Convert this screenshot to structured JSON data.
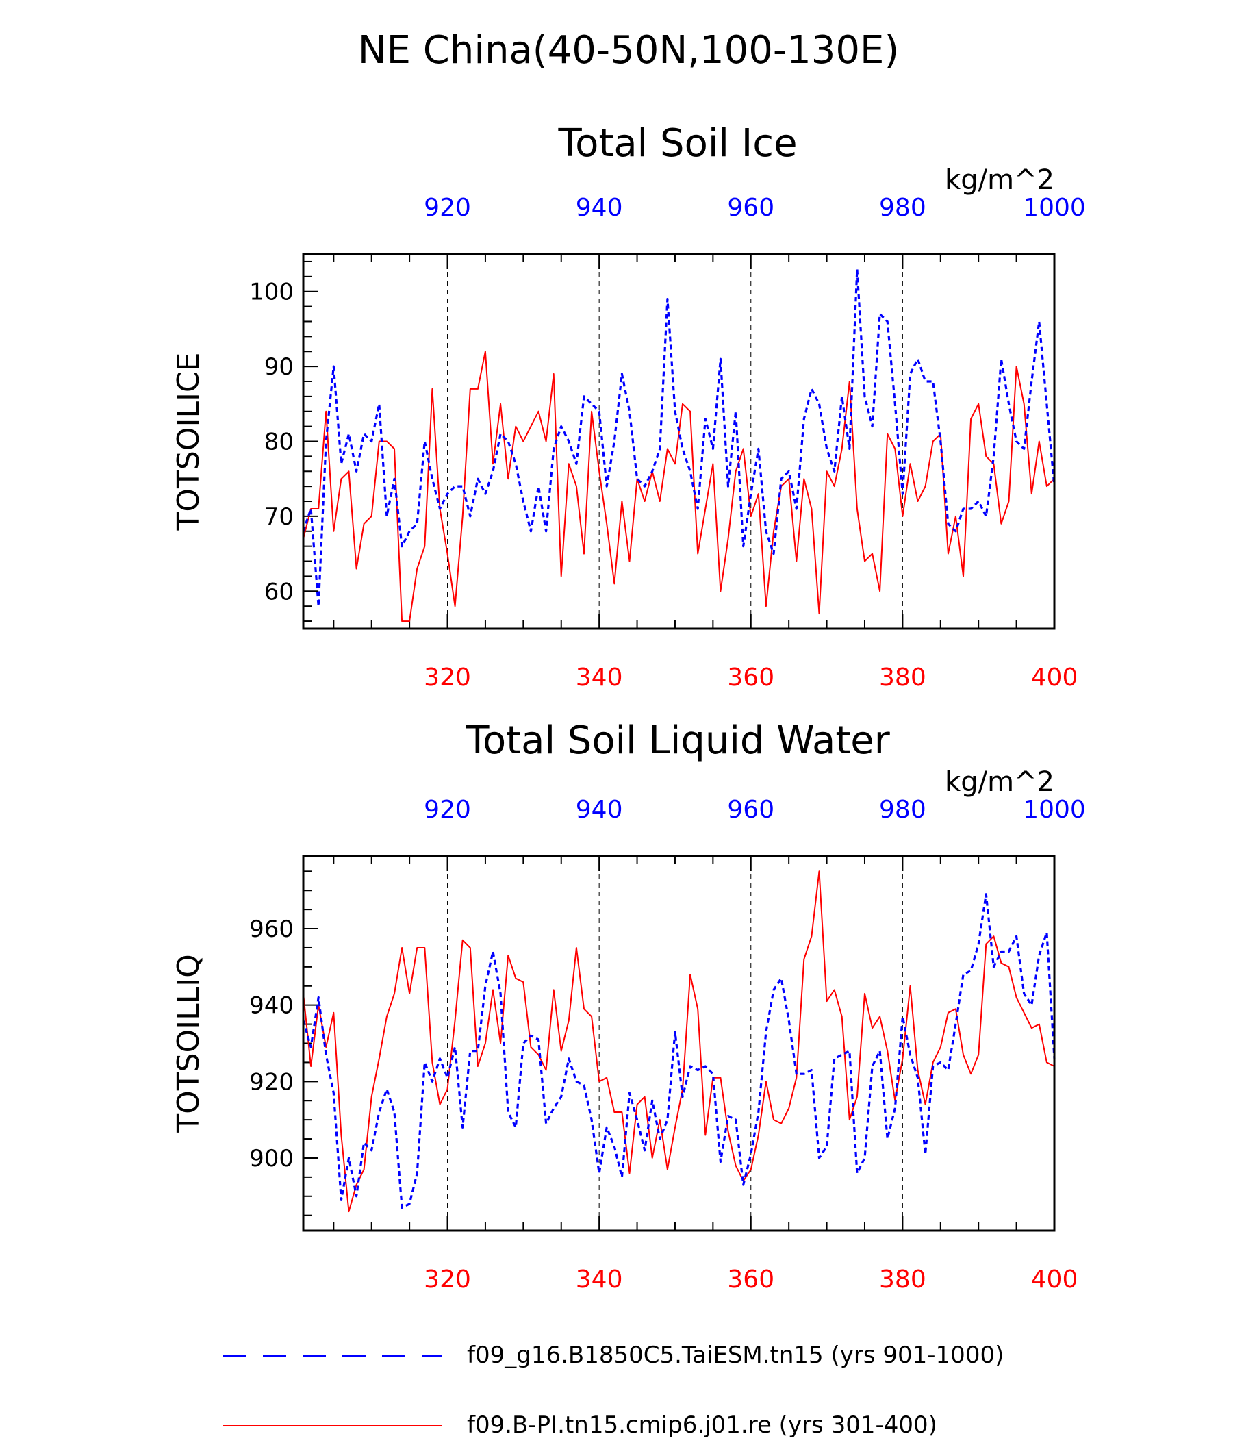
{
  "figure": {
    "title": "NE China(40-50N,100-130E)",
    "legend": [
      {
        "label": "f09_g16.B1850C5.TaiESM.tn15 (yrs 901-1000)",
        "color": "#0000ff",
        "style": "dashed"
      },
      {
        "label": "f09.B-PI.tn15.cmip6.j01.re (yrs 301-400)",
        "color": "#ff0000",
        "style": "solid"
      }
    ]
  },
  "chart_data": [
    {
      "type": "line",
      "title": "Total Soil Ice",
      "ylabel": "TOTSOILICE",
      "units": "kg/m^2",
      "ylim": [
        55,
        105
      ],
      "yticks": [
        60,
        70,
        80,
        90,
        100
      ],
      "grid": "vertical dashed at major x ticks",
      "bottom_axis": {
        "range": [
          301,
          400
        ],
        "ticks": [
          320,
          340,
          360,
          380,
          400
        ],
        "color": "#ff0000"
      },
      "top_axis": {
        "range": [
          901,
          1000
        ],
        "ticks": [
          920,
          940,
          960,
          980,
          1000
        ],
        "color": "#0000ff"
      },
      "series": [
        {
          "axis": "bottom",
          "color": "#ff0000",
          "style": "solid",
          "x_start": 301,
          "values": [
            67,
            71,
            71,
            84,
            68,
            75,
            76,
            63,
            69,
            70,
            80,
            80,
            79,
            56,
            56,
            63,
            66,
            87,
            71,
            65,
            58,
            70,
            87,
            87,
            92,
            77,
            85,
            75,
            82,
            80,
            82,
            84,
            80,
            89,
            62,
            77,
            74,
            65,
            84,
            76,
            69,
            61,
            72,
            64,
            75,
            72,
            76,
            72,
            79,
            77,
            85,
            84,
            65,
            71,
            77,
            60,
            67,
            76,
            79,
            70,
            73,
            58,
            68,
            74,
            75,
            64,
            75,
            71,
            57,
            76,
            74,
            79,
            88,
            71,
            64,
            65,
            60,
            81,
            79,
            70,
            77,
            72,
            74,
            80,
            81,
            65,
            70,
            62,
            83,
            85,
            78,
            77,
            69,
            72,
            90,
            85,
            73,
            80,
            74,
            75
          ]
        },
        {
          "axis": "top",
          "color": "#0000ff",
          "style": "dashed",
          "x_start": 901,
          "values": [
            68,
            71,
            58,
            80,
            90,
            77,
            81,
            76,
            81,
            80,
            85,
            70,
            75,
            66,
            68,
            69,
            80,
            75,
            71,
            73,
            74,
            74,
            70,
            75,
            73,
            76,
            81,
            80,
            77,
            72,
            68,
            74,
            68,
            79,
            82,
            80,
            77,
            86,
            85,
            84,
            74,
            80,
            89,
            84,
            75,
            74,
            76,
            79,
            99,
            84,
            79,
            76,
            71,
            83,
            79,
            91,
            74,
            84,
            66,
            73,
            79,
            68,
            65,
            75,
            76,
            71,
            83,
            87,
            85,
            79,
            76,
            86,
            79,
            103,
            86,
            82,
            97,
            96,
            85,
            73,
            89,
            91,
            88,
            88,
            80,
            69,
            68,
            71,
            71,
            72,
            70,
            78,
            91,
            85,
            80,
            79,
            88,
            96,
            85,
            74
          ]
        }
      ]
    },
    {
      "type": "line",
      "title": "Total Soil Liquid Water",
      "ylabel": "TOTSOILLIQ",
      "units": "kg/m^2",
      "ylim": [
        881,
        979
      ],
      "yticks": [
        900,
        920,
        940,
        960
      ],
      "grid": "vertical dashed at major x ticks",
      "bottom_axis": {
        "range": [
          301,
          400
        ],
        "ticks": [
          320,
          340,
          360,
          380,
          400
        ],
        "color": "#ff0000"
      },
      "top_axis": {
        "range": [
          901,
          1000
        ],
        "ticks": [
          920,
          940,
          960,
          980,
          1000
        ],
        "color": "#0000ff"
      },
      "series": [
        {
          "axis": "bottom",
          "color": "#ff0000",
          "style": "solid",
          "x_start": 301,
          "values": [
            943,
            924,
            940,
            929,
            938,
            906,
            886,
            893,
            897,
            916,
            926,
            937,
            943,
            955,
            943,
            955,
            955,
            925,
            914,
            918,
            936,
            957,
            955,
            924,
            930,
            944,
            930,
            953,
            947,
            946,
            929,
            927,
            923,
            944,
            928,
            936,
            955,
            939,
            937,
            920,
            921,
            912,
            912,
            896,
            914,
            916,
            900,
            910,
            897,
            908,
            918,
            948,
            939,
            906,
            921,
            921,
            907,
            898,
            894,
            897,
            906,
            920,
            910,
            909,
            913,
            921,
            952,
            958,
            975,
            941,
            944,
            937,
            910,
            916,
            943,
            934,
            937,
            928,
            915,
            926,
            945,
            923,
            914,
            925,
            929,
            938,
            939,
            927,
            922,
            927,
            956,
            958,
            951,
            950,
            942,
            938,
            934,
            935,
            925,
            924
          ]
        },
        {
          "axis": "top",
          "color": "#0000ff",
          "style": "dashed",
          "x_start": 901,
          "values": [
            936,
            929,
            942,
            927,
            917,
            889,
            900,
            890,
            904,
            902,
            912,
            918,
            912,
            887,
            888,
            896,
            925,
            920,
            926,
            921,
            929,
            908,
            928,
            928,
            945,
            954,
            943,
            912,
            908,
            930,
            932,
            931,
            909,
            913,
            916,
            926,
            920,
            919,
            910,
            896,
            908,
            903,
            895,
            917,
            910,
            902,
            915,
            905,
            910,
            933,
            916,
            924,
            923,
            924,
            922,
            899,
            911,
            910,
            893,
            901,
            912,
            933,
            944,
            947,
            936,
            922,
            922,
            923,
            900,
            903,
            926,
            927,
            928,
            896,
            900,
            924,
            928,
            905,
            913,
            937,
            927,
            921,
            901,
            924,
            925,
            923,
            935,
            948,
            949,
            956,
            969,
            950,
            954,
            954,
            958,
            943,
            940,
            953,
            959,
            926
          ]
        }
      ]
    }
  ]
}
